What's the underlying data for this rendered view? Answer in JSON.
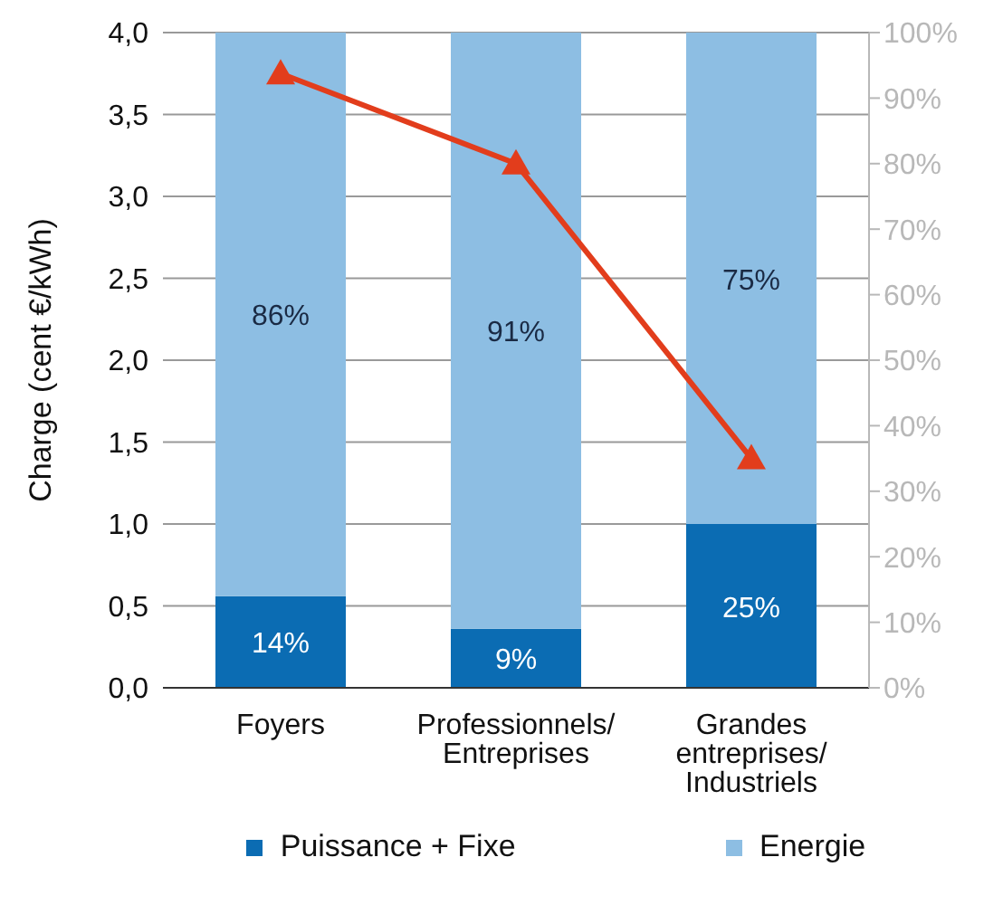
{
  "chart_data": {
    "type": "bar",
    "ylabel": "Charge (cent €/kWh)",
    "stacked": true,
    "categories": [
      "Foyers",
      "Professionnels/ Entreprises",
      "Grandes entreprises/ Industriels"
    ],
    "series": [
      {
        "name": "Puissance + Fixe",
        "color": "#0b6cb3",
        "values": [
          14,
          9,
          25
        ],
        "axis": "y2",
        "value_labels": [
          "14%",
          "9%",
          "25%"
        ]
      },
      {
        "name": "Energie",
        "color": "#8dbee3",
        "values": [
          86,
          91,
          75
        ],
        "axis": "y2",
        "value_labels": [
          "86%",
          "91%",
          "75%"
        ]
      },
      {
        "type": "line",
        "color": "#e23d1c",
        "values": [
          3.75,
          3.2,
          1.4
        ],
        "axis": "y",
        "marker": "triangle"
      }
    ],
    "ylim": [
      0,
      4
    ],
    "yticks": [
      {
        "value": 0,
        "label": "0,0"
      },
      {
        "value": 0.5,
        "label": "0,5"
      },
      {
        "value": 1,
        "label": "1,0"
      },
      {
        "value": 1.5,
        "label": "1,5"
      },
      {
        "value": 2,
        "label": "2,0"
      },
      {
        "value": 2.5,
        "label": "2,5"
      },
      {
        "value": 3,
        "label": "3,0"
      },
      {
        "value": 3.5,
        "label": "3,5"
      },
      {
        "value": 4,
        "label": "4,0"
      }
    ],
    "y2lim": [
      0,
      100
    ],
    "y2ticks": [
      {
        "value": 0,
        "label": "0%"
      },
      {
        "value": 10,
        "label": "10%"
      },
      {
        "value": 20,
        "label": "20%"
      },
      {
        "value": 30,
        "label": "30%"
      },
      {
        "value": 40,
        "label": "40%"
      },
      {
        "value": 50,
        "label": "50%"
      },
      {
        "value": 60,
        "label": "60%"
      },
      {
        "value": 70,
        "label": "70%"
      },
      {
        "value": 80,
        "label": "80%"
      },
      {
        "value": 90,
        "label": "90%"
      },
      {
        "value": 100,
        "label": "100%"
      }
    ],
    "grid": "y",
    "legend": "bottom"
  }
}
